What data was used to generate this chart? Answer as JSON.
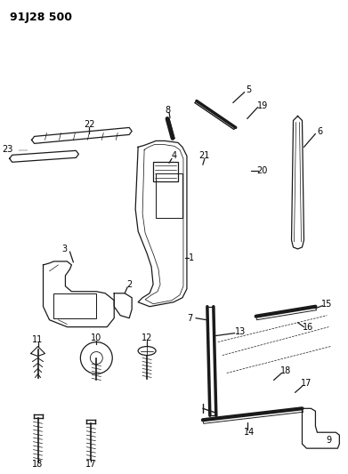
{
  "title": "91J28 500",
  "bg_color": "#ffffff",
  "line_color": "#1a1a1a",
  "fig_w": 3.91,
  "fig_h": 5.33,
  "dpi": 100
}
